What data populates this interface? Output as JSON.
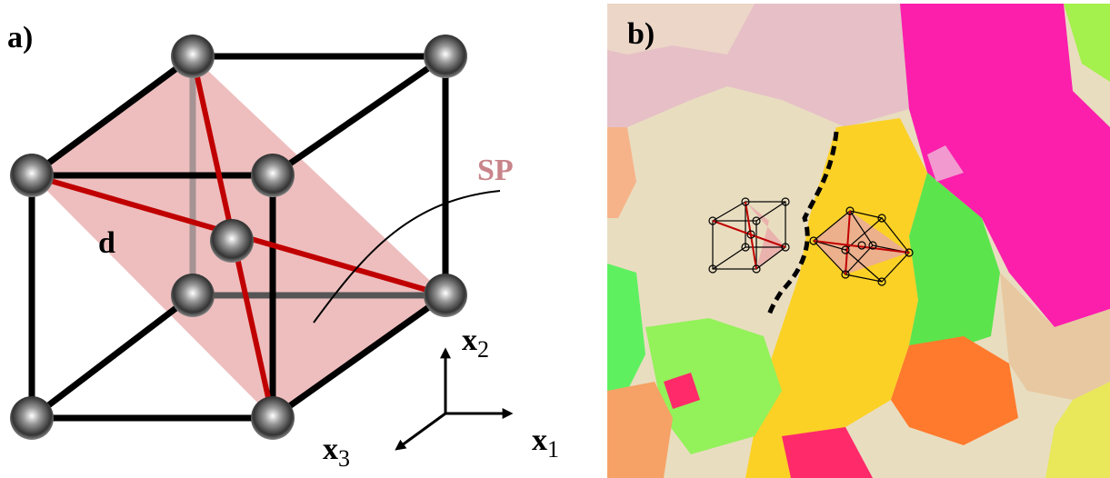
{
  "panel_a": {
    "label": "a)",
    "plane_label": "SP",
    "vector_label": "d",
    "axes": {
      "x2": {
        "symbol": "x",
        "subscript": "2"
      },
      "x1": {
        "symbol": "x",
        "subscript": "1"
      },
      "x3": {
        "symbol": "x",
        "subscript": "3"
      }
    }
  },
  "panel_b": {
    "label": "b)"
  }
}
